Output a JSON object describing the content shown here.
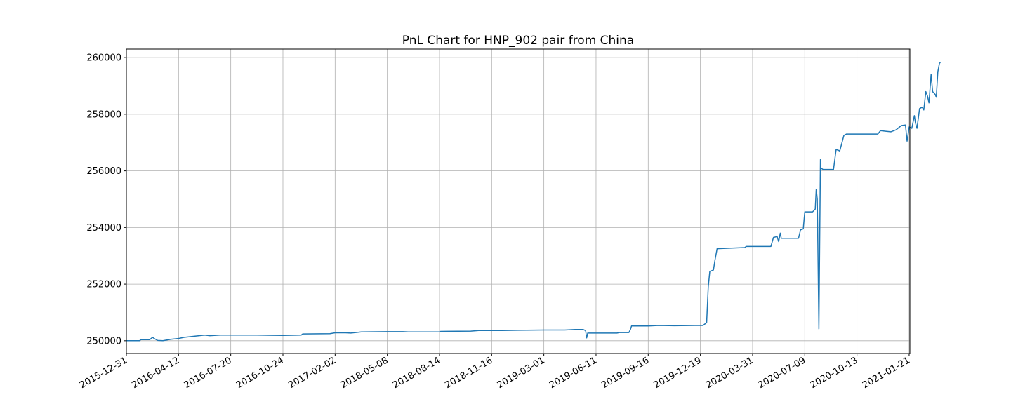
{
  "chart_data": {
    "type": "line",
    "title": "PnL Chart for HNP_902 pair from China",
    "xlabel": "",
    "ylabel": "",
    "x_ticks": [
      "2015-12-31",
      "2016-04-12",
      "2016-07-20",
      "2016-10-24",
      "2017-02-02",
      "2018-05-08",
      "2018-08-14",
      "2018-11-16",
      "2019-03-01",
      "2019-06-11",
      "2019-09-16",
      "2019-12-19",
      "2020-03-31",
      "2020-07-09",
      "2020-10-13",
      "2021-01-21"
    ],
    "y_ticks": [
      250000,
      252000,
      254000,
      256000,
      258000,
      260000
    ],
    "y_tick_labels": [
      "250000",
      "252000",
      "254000",
      "256000",
      "258000",
      "260000"
    ],
    "ylim": [
      249550,
      260300
    ],
    "grid": true,
    "series_color": "#1f77b4",
    "series": [
      {
        "index_values": [
          [
            0,
            250000
          ],
          [
            0.25,
            250000
          ],
          [
            0.28,
            250040
          ],
          [
            0.45,
            250040
          ],
          [
            0.5,
            250120
          ],
          [
            0.55,
            250060
          ],
          [
            0.6,
            250010
          ],
          [
            0.7,
            250000
          ],
          [
            0.85,
            250050
          ],
          [
            1.0,
            250080
          ],
          [
            1.1,
            250120
          ],
          [
            1.3,
            250160
          ],
          [
            1.5,
            250200
          ],
          [
            1.6,
            250180
          ],
          [
            1.8,
            250200
          ],
          [
            2.0,
            250200
          ],
          [
            2.5,
            250200
          ],
          [
            3.0,
            250190
          ],
          [
            3.35,
            250200
          ],
          [
            3.38,
            250240
          ],
          [
            3.9,
            250250
          ],
          [
            4.0,
            250280
          ],
          [
            4.2,
            250280
          ],
          [
            4.3,
            250270
          ],
          [
            4.5,
            250310
          ],
          [
            5.0,
            250320
          ],
          [
            5.3,
            250320
          ],
          [
            5.4,
            250310
          ],
          [
            6.0,
            250310
          ],
          [
            6.02,
            250330
          ],
          [
            6.6,
            250340
          ],
          [
            6.75,
            250360
          ],
          [
            7.2,
            250360
          ],
          [
            7.5,
            250370
          ],
          [
            8.0,
            250380
          ],
          [
            8.4,
            250380
          ],
          [
            8.6,
            250400
          ],
          [
            8.75,
            250400
          ],
          [
            8.8,
            250360
          ],
          [
            8.82,
            250100
          ],
          [
            8.84,
            250270
          ],
          [
            9.1,
            250270
          ],
          [
            9.4,
            250270
          ],
          [
            9.45,
            250290
          ],
          [
            9.63,
            250290
          ],
          [
            9.66,
            250400
          ],
          [
            9.68,
            250520
          ],
          [
            10.0,
            250520
          ],
          [
            10.2,
            250540
          ],
          [
            10.5,
            250530
          ],
          [
            10.9,
            250540
          ],
          [
            11.05,
            250540
          ],
          [
            11.12,
            250640
          ],
          [
            11.15,
            251900
          ],
          [
            11.18,
            252450
          ],
          [
            11.25,
            252500
          ],
          [
            11.28,
            252850
          ],
          [
            11.32,
            253250
          ],
          [
            11.6,
            253270
          ],
          [
            11.85,
            253290
          ],
          [
            11.88,
            253330
          ],
          [
            12.0,
            253330
          ],
          [
            12.2,
            253330
          ],
          [
            12.35,
            253330
          ],
          [
            12.4,
            253650
          ],
          [
            12.47,
            253680
          ],
          [
            12.5,
            253500
          ],
          [
            12.53,
            253800
          ],
          [
            12.55,
            253620
          ],
          [
            12.75,
            253620
          ],
          [
            12.88,
            253620
          ],
          [
            12.92,
            253920
          ],
          [
            12.97,
            253950
          ],
          [
            13.0,
            254550
          ],
          [
            13.15,
            254550
          ],
          [
            13.2,
            254650
          ],
          [
            13.22,
            255350
          ],
          [
            13.24,
            255000
          ],
          [
            13.27,
            250420
          ],
          [
            13.3,
            256400
          ],
          [
            13.31,
            256100
          ],
          [
            13.35,
            256050
          ],
          [
            13.55,
            256050
          ],
          [
            13.6,
            256750
          ],
          [
            13.64,
            256730
          ],
          [
            13.67,
            256700
          ],
          [
            13.75,
            257250
          ],
          [
            13.8,
            257300
          ],
          [
            14.0,
            257300
          ],
          [
            14.3,
            257300
          ],
          [
            14.4,
            257300
          ],
          [
            14.45,
            257420
          ],
          [
            14.55,
            257400
          ],
          [
            14.65,
            257380
          ],
          [
            14.75,
            257450
          ],
          [
            14.85,
            257600
          ],
          [
            14.93,
            257620
          ],
          [
            14.96,
            257050
          ],
          [
            15.0,
            257550
          ],
          [
            15.05,
            257500
          ],
          [
            15.1,
            257950
          ],
          [
            15.12,
            257700
          ],
          [
            15.15,
            257500
          ],
          [
            15.2,
            258200
          ],
          [
            15.25,
            258250
          ],
          [
            15.28,
            258150
          ],
          [
            15.32,
            258800
          ],
          [
            15.35,
            258650
          ],
          [
            15.38,
            258400
          ],
          [
            15.42,
            259400
          ],
          [
            15.45,
            258800
          ],
          [
            15.5,
            258700
          ],
          [
            15.52,
            258600
          ],
          [
            15.55,
            259500
          ],
          [
            15.58,
            259800
          ],
          [
            15.6,
            259830
          ]
        ]
      }
    ]
  }
}
